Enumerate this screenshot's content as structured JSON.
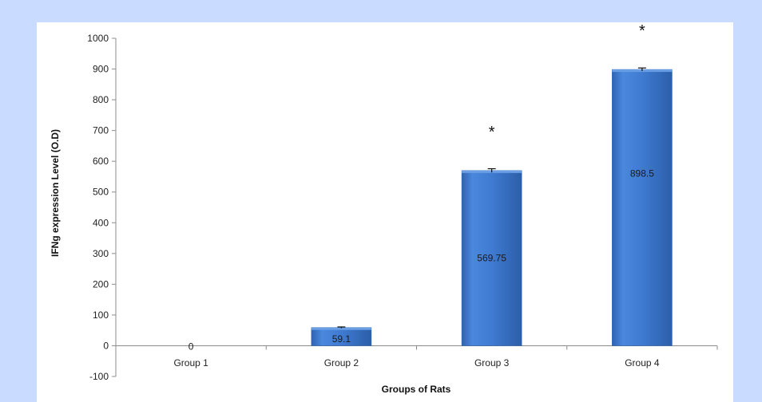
{
  "chart_data": {
    "type": "bar",
    "categories": [
      "Group 1",
      "Group 2",
      "Group 3",
      "Group 4"
    ],
    "values": [
      0,
      59.1,
      569.75,
      898.5
    ],
    "error": [
      0,
      2,
      6,
      5
    ],
    "data_labels": [
      "0",
      "59.1",
      "569.75",
      "898.5"
    ],
    "annotations": [
      "",
      "",
      "*",
      "*"
    ],
    "xlabel": "Groups of Rats",
    "ylabel": "IFNg expression Level (O.D)",
    "ylim": [
      -100,
      1000
    ],
    "yticks": [
      "-100",
      "0",
      "100",
      "200",
      "300",
      "400",
      "500",
      "600",
      "700",
      "800",
      "900",
      "1000"
    ],
    "grid": false,
    "legend": "none",
    "colors": {
      "bar": "#3c78cf",
      "bar_dark": "#2a5fa8",
      "background": "#c9dcff",
      "panel": "#ffffff"
    }
  }
}
